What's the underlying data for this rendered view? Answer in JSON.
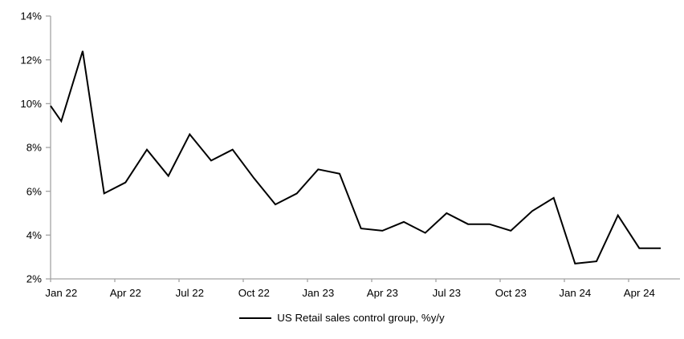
{
  "chart_data": {
    "type": "line",
    "title": "",
    "xlabel": "",
    "ylabel": "",
    "series_name": "US Retail sales control group, %y/y",
    "x": [
      "Jan 22",
      "Feb 22",
      "Mar 22",
      "Apr 22",
      "May 22",
      "Jun 22",
      "Jul 22",
      "Aug 22",
      "Sep 22",
      "Oct 22",
      "Nov 22",
      "Dec 22",
      "Jan 23",
      "Feb 23",
      "Mar 23",
      "Apr 23",
      "May 23",
      "Jun 23",
      "Jul 23",
      "Aug 23",
      "Sep 23",
      "Oct 23",
      "Nov 23",
      "Dec 23",
      "Jan 24",
      "Feb 24",
      "Mar 24",
      "Apr 24",
      "May 24"
    ],
    "values": [
      9.2,
      12.4,
      5.9,
      6.4,
      7.9,
      6.7,
      8.6,
      7.4,
      7.9,
      6.6,
      5.4,
      5.9,
      7.0,
      6.8,
      4.3,
      4.2,
      4.6,
      4.1,
      5.0,
      4.5,
      4.5,
      4.2,
      5.1,
      5.7,
      2.7,
      2.8,
      4.9,
      3.4,
      3.4
    ],
    "edge_start_value": 9.9,
    "ylim": [
      2,
      14
    ],
    "ytick_step": 2,
    "ytick_labels": [
      "2%",
      "4%",
      "6%",
      "8%",
      "10%",
      "12%",
      "14%"
    ],
    "xtick_labels": [
      "Jan 22",
      "Apr 22",
      "Jul 22",
      "Oct 22",
      "Jan 23",
      "Apr 23",
      "Jul 23",
      "Oct 23",
      "Jan 24",
      "Apr 24"
    ],
    "grid": false,
    "legend_position": "bottom-center",
    "line_color": "#000000",
    "axis_color": "#a3a3a3",
    "text_color": "#000000"
  }
}
